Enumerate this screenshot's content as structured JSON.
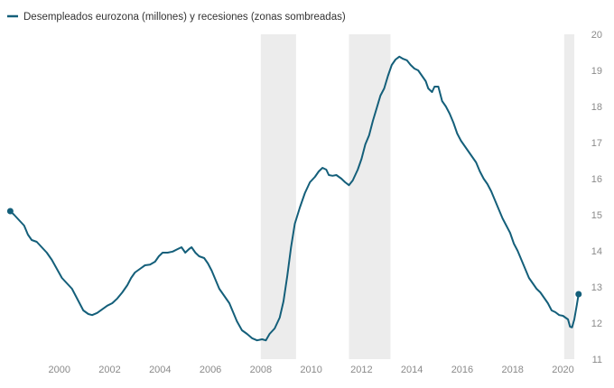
{
  "chart_data": {
    "type": "line",
    "legend": {
      "label": "Desempleados eurozona (millones) y recesiones (zonas sombreadas)",
      "placement": "top-left"
    },
    "series_color": "#145f7a",
    "recession_color": "#ececec",
    "grid": false,
    "xlim": [
      1998.0,
      2020.7
    ],
    "ylim": [
      11,
      20
    ],
    "x_ticks": [
      2000,
      2002,
      2004,
      2006,
      2008,
      2010,
      2012,
      2014,
      2016,
      2018,
      2020
    ],
    "y_ticks": [
      11,
      12,
      13,
      14,
      15,
      16,
      17,
      18,
      19,
      20
    ],
    "recessions": [
      {
        "start": 2008.0,
        "end": 2009.4
      },
      {
        "start": 2011.5,
        "end": 2013.15
      },
      {
        "start": 2020.05,
        "end": 2020.45
      }
    ],
    "series": [
      {
        "values": [
          [
            1998.05,
            15.1
          ],
          [
            1998.2,
            15.0
          ],
          [
            1998.4,
            14.85
          ],
          [
            1998.6,
            14.7
          ],
          [
            1998.75,
            14.45
          ],
          [
            1998.9,
            14.3
          ],
          [
            1999.1,
            14.25
          ],
          [
            1999.3,
            14.1
          ],
          [
            1999.5,
            13.95
          ],
          [
            1999.7,
            13.75
          ],
          [
            1999.9,
            13.5
          ],
          [
            2000.1,
            13.25
          ],
          [
            2000.3,
            13.1
          ],
          [
            2000.5,
            12.95
          ],
          [
            2000.65,
            12.75
          ],
          [
            2000.8,
            12.55
          ],
          [
            2000.95,
            12.35
          ],
          [
            2001.15,
            12.25
          ],
          [
            2001.3,
            12.22
          ],
          [
            2001.5,
            12.28
          ],
          [
            2001.7,
            12.38
          ],
          [
            2001.9,
            12.48
          ],
          [
            2002.1,
            12.55
          ],
          [
            2002.3,
            12.68
          ],
          [
            2002.5,
            12.85
          ],
          [
            2002.7,
            13.05
          ],
          [
            2002.85,
            13.25
          ],
          [
            2003.0,
            13.4
          ],
          [
            2003.2,
            13.5
          ],
          [
            2003.4,
            13.6
          ],
          [
            2003.6,
            13.62
          ],
          [
            2003.8,
            13.7
          ],
          [
            2003.95,
            13.85
          ],
          [
            2004.1,
            13.95
          ],
          [
            2004.3,
            13.95
          ],
          [
            2004.5,
            13.98
          ],
          [
            2004.7,
            14.05
          ],
          [
            2004.85,
            14.1
          ],
          [
            2005.0,
            13.95
          ],
          [
            2005.15,
            14.05
          ],
          [
            2005.25,
            14.1
          ],
          [
            2005.4,
            13.95
          ],
          [
            2005.55,
            13.85
          ],
          [
            2005.75,
            13.8
          ],
          [
            2005.9,
            13.65
          ],
          [
            2006.05,
            13.45
          ],
          [
            2006.2,
            13.2
          ],
          [
            2006.35,
            12.95
          ],
          [
            2006.55,
            12.75
          ],
          [
            2006.75,
            12.55
          ],
          [
            2006.9,
            12.3
          ],
          [
            2007.05,
            12.05
          ],
          [
            2007.25,
            11.8
          ],
          [
            2007.45,
            11.7
          ],
          [
            2007.65,
            11.58
          ],
          [
            2007.85,
            11.52
          ],
          [
            2008.05,
            11.55
          ],
          [
            2008.2,
            11.52
          ],
          [
            2008.35,
            11.7
          ],
          [
            2008.55,
            11.85
          ],
          [
            2008.75,
            12.15
          ],
          [
            2008.9,
            12.6
          ],
          [
            2009.05,
            13.3
          ],
          [
            2009.2,
            14.1
          ],
          [
            2009.35,
            14.75
          ],
          [
            2009.55,
            15.2
          ],
          [
            2009.75,
            15.6
          ],
          [
            2009.95,
            15.9
          ],
          [
            2010.15,
            16.05
          ],
          [
            2010.3,
            16.2
          ],
          [
            2010.45,
            16.3
          ],
          [
            2010.6,
            16.25
          ],
          [
            2010.7,
            16.1
          ],
          [
            2010.85,
            16.08
          ],
          [
            2011.0,
            16.1
          ],
          [
            2011.2,
            16.0
          ],
          [
            2011.35,
            15.9
          ],
          [
            2011.5,
            15.82
          ],
          [
            2011.65,
            15.95
          ],
          [
            2011.85,
            16.25
          ],
          [
            2012.0,
            16.55
          ],
          [
            2012.15,
            16.95
          ],
          [
            2012.3,
            17.2
          ],
          [
            2012.45,
            17.6
          ],
          [
            2012.6,
            17.95
          ],
          [
            2012.75,
            18.3
          ],
          [
            2012.9,
            18.5
          ],
          [
            2013.05,
            18.85
          ],
          [
            2013.2,
            19.15
          ],
          [
            2013.35,
            19.3
          ],
          [
            2013.5,
            19.38
          ],
          [
            2013.65,
            19.32
          ],
          [
            2013.8,
            19.28
          ],
          [
            2013.95,
            19.15
          ],
          [
            2014.1,
            19.05
          ],
          [
            2014.25,
            19.0
          ],
          [
            2014.4,
            18.85
          ],
          [
            2014.55,
            18.7
          ],
          [
            2014.65,
            18.5
          ],
          [
            2014.8,
            18.4
          ],
          [
            2014.9,
            18.55
          ],
          [
            2015.05,
            18.55
          ],
          [
            2015.2,
            18.15
          ],
          [
            2015.35,
            18.0
          ],
          [
            2015.5,
            17.8
          ],
          [
            2015.65,
            17.55
          ],
          [
            2015.8,
            17.25
          ],
          [
            2015.95,
            17.05
          ],
          [
            2016.1,
            16.9
          ],
          [
            2016.25,
            16.75
          ],
          [
            2016.4,
            16.6
          ],
          [
            2016.55,
            16.45
          ],
          [
            2016.7,
            16.2
          ],
          [
            2016.85,
            16.0
          ],
          [
            2017.0,
            15.85
          ],
          [
            2017.15,
            15.65
          ],
          [
            2017.3,
            15.4
          ],
          [
            2017.45,
            15.15
          ],
          [
            2017.6,
            14.9
          ],
          [
            2017.75,
            14.7
          ],
          [
            2017.9,
            14.5
          ],
          [
            2018.05,
            14.2
          ],
          [
            2018.2,
            14.0
          ],
          [
            2018.35,
            13.75
          ],
          [
            2018.5,
            13.5
          ],
          [
            2018.65,
            13.25
          ],
          [
            2018.8,
            13.1
          ],
          [
            2018.95,
            12.95
          ],
          [
            2019.1,
            12.85
          ],
          [
            2019.25,
            12.7
          ],
          [
            2019.4,
            12.55
          ],
          [
            2019.55,
            12.35
          ],
          [
            2019.7,
            12.3
          ],
          [
            2019.85,
            12.22
          ],
          [
            2020.0,
            12.2
          ],
          [
            2020.1,
            12.15
          ],
          [
            2020.2,
            12.1
          ],
          [
            2020.28,
            11.9
          ],
          [
            2020.36,
            11.88
          ],
          [
            2020.45,
            12.1
          ],
          [
            2020.55,
            12.5
          ],
          [
            2020.62,
            12.8
          ]
        ]
      }
    ]
  }
}
